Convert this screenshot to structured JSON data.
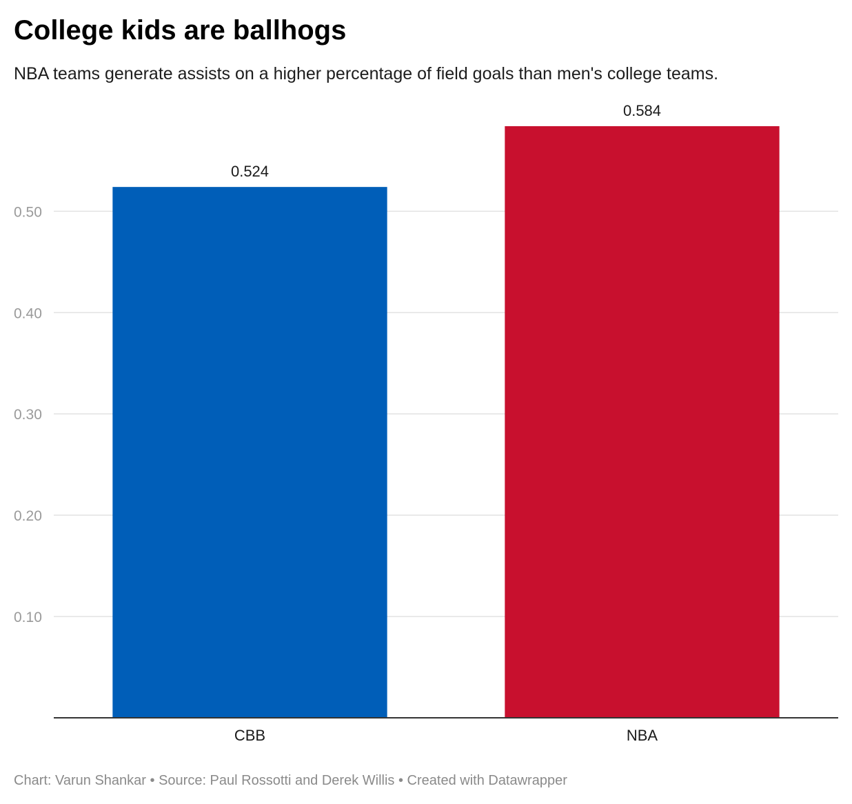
{
  "chart_data": {
    "type": "bar",
    "title": "College kids are ballhogs",
    "subtitle": "NBA teams generate assists on a higher percentage of field goals than men's college teams.",
    "categories": [
      "CBB",
      "NBA"
    ],
    "values": [
      0.524,
      0.584
    ],
    "value_labels": [
      "0.524",
      "0.584"
    ],
    "bar_colors": [
      "#005eb8",
      "#c8102e"
    ],
    "yticks": [
      0.1,
      0.2,
      0.3,
      0.4,
      0.5
    ],
    "ytick_labels": [
      "0.10",
      "0.20",
      "0.30",
      "0.40",
      "0.50"
    ],
    "ylim": [
      0,
      0.584
    ],
    "xlabel": "",
    "ylabel": "",
    "grid": true,
    "legend": "none"
  },
  "footer": {
    "text": "Chart: Varun Shankar • Source: Paul Rossotti and Derek Willis • Created with Datawrapper"
  }
}
